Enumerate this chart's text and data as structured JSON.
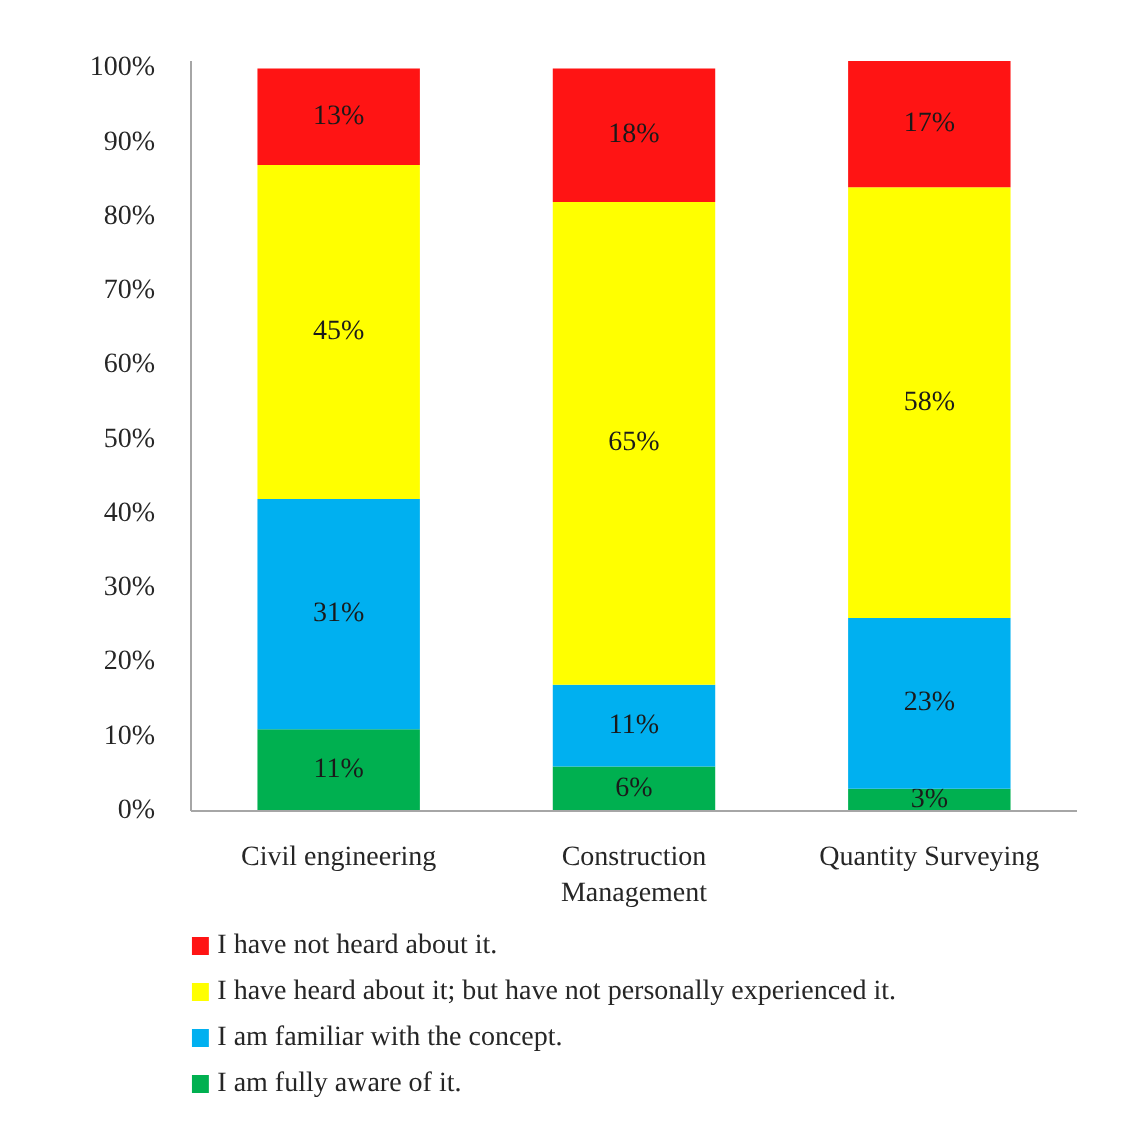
{
  "chart_data": {
    "type": "bar",
    "stacked": true,
    "categories": [
      "Civil engineering",
      "Construction Management",
      "Quantity Surveying"
    ],
    "series": [
      {
        "name": "I am fully aware of it.",
        "color": "#00b050",
        "values": [
          11,
          6,
          3
        ],
        "value_labels": [
          "11%",
          "6%",
          "3%"
        ]
      },
      {
        "name": "I am familiar with the concept.",
        "color": "#00b0f0",
        "values": [
          31,
          11,
          23
        ],
        "value_labels": [
          "31%",
          "11%",
          "23%"
        ]
      },
      {
        "name": "I have heard about it; but have not personally experienced it.",
        "color": "#ffff00",
        "values": [
          45,
          65,
          58
        ],
        "value_labels": [
          "45%",
          "65%",
          "58%"
        ]
      },
      {
        "name": "I have not heard about it.",
        "color": "#ff1414",
        "values": [
          13,
          18,
          17
        ],
        "value_labels": [
          "13%",
          "18%",
          "17%"
        ]
      }
    ],
    "ylim": [
      0,
      101
    ],
    "yticks": [
      {
        "value": 0,
        "label": "0%"
      },
      {
        "value": 10,
        "label": "10%"
      },
      {
        "value": 20,
        "label": "20%"
      },
      {
        "value": 30,
        "label": "30%"
      },
      {
        "value": 40,
        "label": "40%"
      },
      {
        "value": 50,
        "label": "50%"
      },
      {
        "value": 60,
        "label": "60%"
      },
      {
        "value": 70,
        "label": "70%"
      },
      {
        "value": 80,
        "label": "80%"
      },
      {
        "value": 90,
        "label": "90%"
      },
      {
        "value": 100,
        "label": "100%"
      }
    ],
    "legend": "bottom"
  }
}
